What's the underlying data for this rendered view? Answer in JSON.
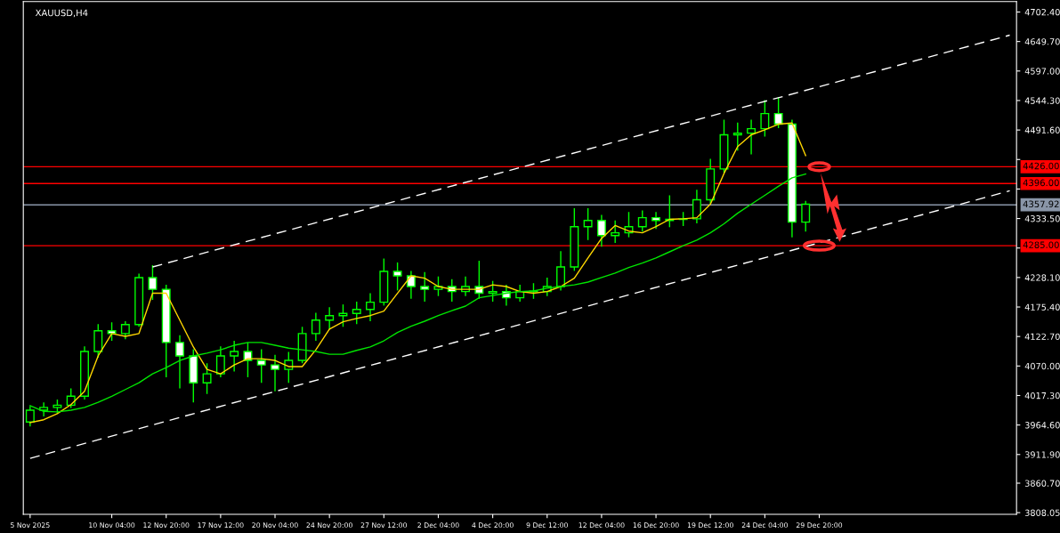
{
  "chart_data": {
    "type": "candlestick",
    "title": "XAUUSD,H4",
    "color": "#00ff00",
    "categories": [
      "5 Nov 2025",
      null,
      null,
      null,
      null,
      null,
      "10 Nov 04:00",
      null,
      null,
      null,
      "12 Nov 20:00",
      null,
      null,
      null,
      "17 Nov 12:00",
      null,
      null,
      null,
      "20 Nov 04:00",
      null,
      null,
      null,
      "24 Nov 20:00",
      null,
      null,
      null,
      "27 Nov 12:00",
      null,
      null,
      null,
      "2 Dec 04:00",
      null,
      null,
      null,
      "4 Dec 20:00",
      null,
      null,
      null,
      "9 Dec 12:00",
      null,
      null,
      null,
      "12 Dec 04:00",
      null,
      null,
      null,
      "16 Dec 20:00",
      null,
      null,
      null,
      "19 Dec 12:00",
      null,
      null,
      null,
      "24 Dec 04:00",
      null,
      null,
      null,
      "29 Dec 20:00",
      null,
      null,
      null,
      null,
      null,
      null,
      null,
      null,
      null,
      null,
      null,
      null,
      null,
      null
    ],
    "ohlc": [
      [
        3970,
        3998,
        3962,
        3991
      ],
      [
        3991,
        4005,
        3980,
        3996
      ],
      [
        3996,
        4010,
        3985,
        4000
      ],
      [
        4000,
        4030,
        3995,
        4016
      ],
      [
        4016,
        4105,
        4010,
        4096
      ],
      [
        4096,
        4145,
        4085,
        4133
      ],
      [
        4133,
        4148,
        4115,
        4128
      ],
      [
        4128,
        4150,
        4118,
        4144
      ],
      [
        4144,
        4235,
        4140,
        4228
      ],
      [
        4228,
        4250,
        4188,
        4207
      ],
      [
        4207,
        4215,
        4050,
        4112
      ],
      [
        4112,
        4125,
        4030,
        4088
      ],
      [
        4088,
        4100,
        4005,
        4040
      ],
      [
        4040,
        4075,
        4020,
        4056
      ],
      [
        4056,
        4105,
        4050,
        4088
      ],
      [
        4088,
        4115,
        4060,
        4096
      ],
      [
        4096,
        4112,
        4050,
        4080
      ],
      [
        4080,
        4100,
        4040,
        4072
      ],
      [
        4072,
        4090,
        4025,
        4064
      ],
      [
        4064,
        4095,
        4040,
        4080
      ],
      [
        4080,
        4140,
        4075,
        4128
      ],
      [
        4128,
        4165,
        4115,
        4152
      ],
      [
        4152,
        4175,
        4135,
        4160
      ],
      [
        4160,
        4180,
        4140,
        4164
      ],
      [
        4164,
        4185,
        4145,
        4171
      ],
      [
        4171,
        4200,
        4150,
        4184
      ],
      [
        4184,
        4262,
        4178,
        4239
      ],
      [
        4239,
        4255,
        4205,
        4231
      ],
      [
        4231,
        4240,
        4190,
        4212
      ],
      [
        4212,
        4238,
        4185,
        4207
      ],
      [
        4207,
        4230,
        4195,
        4212
      ],
      [
        4212,
        4225,
        4185,
        4203
      ],
      [
        4203,
        4230,
        4195,
        4212
      ],
      [
        4212,
        4258,
        4190,
        4200
      ],
      [
        4200,
        4222,
        4185,
        4203
      ],
      [
        4203,
        4215,
        4178,
        4192
      ],
      [
        4192,
        4215,
        4185,
        4203
      ],
      [
        4203,
        4218,
        4190,
        4203
      ],
      [
        4203,
        4228,
        4195,
        4212
      ],
      [
        4212,
        4275,
        4205,
        4247
      ],
      [
        4247,
        4352,
        4240,
        4319
      ],
      [
        4319,
        4352,
        4295,
        4330
      ],
      [
        4330,
        4340,
        4283,
        4303
      ],
      [
        4303,
        4330,
        4290,
        4308
      ],
      [
        4308,
        4345,
        4300,
        4319
      ],
      [
        4319,
        4348,
        4310,
        4335
      ],
      [
        4335,
        4345,
        4315,
        4330
      ],
      [
        4330,
        4375,
        4318,
        4332
      ],
      [
        4332,
        4345,
        4320,
        4333
      ],
      [
        4333,
        4385,
        4325,
        4367
      ],
      [
        4367,
        4440,
        4360,
        4422
      ],
      [
        4422,
        4510,
        4415,
        4483
      ],
      [
        4483,
        4505,
        4455,
        4486
      ],
      [
        4486,
        4510,
        4448,
        4494
      ],
      [
        4494,
        4545,
        4480,
        4521
      ],
      [
        4521,
        4550,
        4495,
        4502
      ],
      [
        4502,
        4510,
        4300,
        4327
      ],
      [
        4327,
        4365,
        4310,
        4359
      ],
      null,
      null,
      null,
      null,
      null,
      null,
      null,
      null,
      null,
      null,
      null,
      null,
      null,
      null,
      null
    ],
    "series": [
      {
        "type": "line",
        "color": "#ffd700",
        "line_style": "solid",
        "values": [
          3969,
          3974,
          3985,
          4001,
          4025,
          4088,
          4128,
          4123,
          4128,
          4200,
          4200,
          4152,
          4104,
          4064,
          4056,
          4072,
          4083,
          4083,
          4080,
          4069,
          4069,
          4099,
          4136,
          4149,
          4155,
          4160,
          4168,
          4200,
          4231,
          4227,
          4212,
          4207,
          4207,
          4207,
          4215,
          4212,
          4203,
          4200,
          4203,
          4212,
          4227,
          4263,
          4298,
          4321,
          4311,
          4308,
          4319,
          4332,
          4333,
          4335,
          4359,
          4414,
          4462,
          4483,
          4492,
          4502,
          4504,
          4446,
          null,
          null,
          null,
          null,
          null,
          null,
          null,
          null,
          null,
          null,
          null,
          null,
          null,
          null,
          null
        ]
      },
      {
        "type": "line",
        "color": "#00e600",
        "line_style": "solid",
        "values": [
          3999,
          3989,
          3988,
          3991,
          3996,
          4005,
          4016,
          4028,
          4040,
          4056,
          4067,
          4080,
          4088,
          4093,
          4099,
          4107,
          4112,
          4112,
          4107,
          4102,
          4099,
          4096,
          4091,
          4091,
          4098,
          4104,
          4115,
          4130,
          4141,
          4150,
          4160,
          4169,
          4177,
          4192,
          4196,
          4200,
          4203,
          4204,
          4209,
          4212,
          4215,
          4220,
          4228,
          4236,
          4246,
          4254,
          4263,
          4274,
          4285,
          4295,
          4308,
          4324,
          4343,
          4359,
          4375,
          4391,
          4406,
          4413,
          null,
          null,
          null,
          null,
          null,
          null,
          null,
          null,
          null,
          null,
          null,
          null,
          null,
          null,
          null
        ]
      },
      {
        "type": "line",
        "color": "#ffffff",
        "line_style": "dashed",
        "values": [
          null,
          null,
          null,
          null,
          null,
          null,
          null,
          null,
          null,
          4247,
          null,
          null,
          null,
          null,
          null,
          null,
          null,
          null,
          null,
          null,
          null,
          null,
          null,
          null,
          null,
          null,
          null,
          null,
          null,
          null,
          null,
          null,
          null,
          null,
          null,
          null,
          null,
          null,
          null,
          null,
          null,
          null,
          null,
          null,
          null,
          null,
          null,
          null,
          null,
          null,
          null,
          null,
          null,
          null,
          null,
          null,
          null,
          null,
          null,
          null,
          null,
          null,
          null,
          null,
          null,
          null,
          null,
          null,
          null,
          null,
          null,
          null,
          4661
        ]
      },
      {
        "type": "line",
        "color": "#ffffff",
        "line_style": "dashed",
        "values": [
          3905,
          null,
          null,
          null,
          null,
          null,
          null,
          null,
          null,
          null,
          null,
          null,
          null,
          null,
          null,
          null,
          null,
          null,
          null,
          null,
          null,
          null,
          null,
          null,
          null,
          null,
          null,
          null,
          null,
          null,
          null,
          null,
          null,
          null,
          null,
          null,
          null,
          null,
          null,
          null,
          null,
          null,
          null,
          null,
          null,
          null,
          null,
          null,
          null,
          null,
          null,
          null,
          null,
          null,
          null,
          null,
          null,
          null,
          null,
          null,
          null,
          null,
          null,
          null,
          null,
          null,
          null,
          null,
          null,
          null,
          null,
          null,
          4383
        ]
      }
    ],
    "ylim": [
      3805,
      4721
    ],
    "yticks": [
      {
        "value": 3808.05,
        "label": "3808.05"
      },
      {
        "value": 3860.7,
        "label": "3860.70"
      },
      {
        "value": 3911.9,
        "label": "3911.90"
      },
      {
        "value": 3964.6,
        "label": "3964.60"
      },
      {
        "value": 4017.3,
        "label": "4017.30"
      },
      {
        "value": 4070,
        "label": "4070.00"
      },
      {
        "value": 4122.7,
        "label": "4122.70"
      },
      {
        "value": 4175.4,
        "label": "4175.40"
      },
      {
        "value": 4228.1,
        "label": "4228.10"
      },
      {
        "value": 4280.8,
        "label": null
      },
      {
        "value": 4333.5,
        "label": "4333.50"
      },
      {
        "value": 4386.2,
        "label": null
      },
      {
        "value": 4438.9,
        "label": null
      },
      {
        "value": 4491.6,
        "label": "4491.60"
      },
      {
        "value": 4544.3,
        "label": "4544.30"
      },
      {
        "value": 4597,
        "label": "4597.00"
      },
      {
        "value": 4649.7,
        "label": "4649.70"
      },
      {
        "value": 4702.4,
        "label": "4702.40"
      }
    ],
    "ref_lines": [
      {
        "axis": "y",
        "value": 4426,
        "label": "4426.00",
        "color": "#ff0000",
        "line_style": "solid"
      },
      {
        "axis": "y",
        "value": 4396,
        "label": "4396.00",
        "color": "#ff0000",
        "line_style": "solid"
      },
      {
        "axis": "y",
        "value": 4357.92,
        "label": "4357.92",
        "color": "#8a96a8",
        "line_style": "solid"
      },
      {
        "axis": "y",
        "value": 4285,
        "label": "4285.00",
        "color": "#ff0000",
        "line_style": "solid"
      }
    ]
  }
}
